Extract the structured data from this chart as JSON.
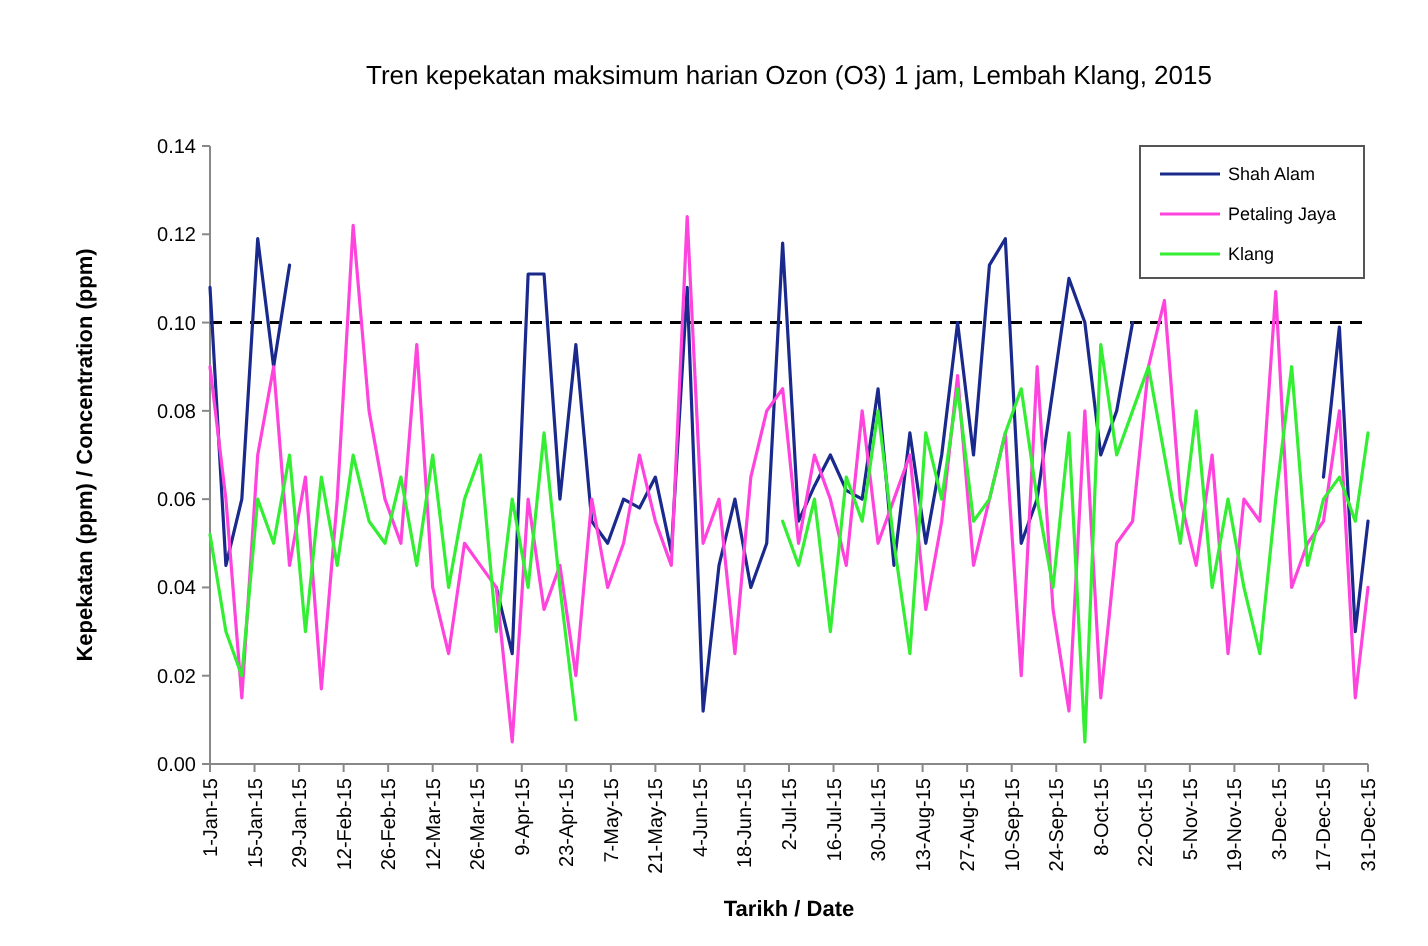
{
  "chart_data": {
    "type": "line",
    "title": "Tren kepekatan maksimum  harian Ozon (O3) 1 jam, Lembah Klang, 2015",
    "xlabel": "Tarikh / Date",
    "ylabel": "Kepekatan (ppm) / Concentration (ppm)",
    "x": [
      "2015-01-01",
      "2015-01-06",
      "2015-01-11",
      "2015-01-16",
      "2015-01-21",
      "2015-01-26",
      "2015-01-31",
      "2015-02-05",
      "2015-02-10",
      "2015-02-15",
      "2015-02-20",
      "2015-02-25",
      "2015-03-02",
      "2015-03-07",
      "2015-03-12",
      "2015-03-17",
      "2015-03-22",
      "2015-03-27",
      "2015-04-01",
      "2015-04-06",
      "2015-04-11",
      "2015-04-16",
      "2015-04-21",
      "2015-04-26",
      "2015-05-01",
      "2015-05-06",
      "2015-05-11",
      "2015-05-16",
      "2015-05-21",
      "2015-05-26",
      "2015-05-31",
      "2015-06-05",
      "2015-06-10",
      "2015-06-15",
      "2015-06-20",
      "2015-06-25",
      "2015-06-30",
      "2015-07-05",
      "2015-07-10",
      "2015-07-15",
      "2015-07-20",
      "2015-07-25",
      "2015-07-30",
      "2015-08-04",
      "2015-08-09",
      "2015-08-14",
      "2015-08-19",
      "2015-08-24",
      "2015-08-29",
      "2015-09-03",
      "2015-09-08",
      "2015-09-13",
      "2015-09-18",
      "2015-09-23",
      "2015-09-28",
      "2015-10-03",
      "2015-10-08",
      "2015-10-13",
      "2015-10-18",
      "2015-10-23",
      "2015-10-28",
      "2015-11-02",
      "2015-11-07",
      "2015-11-12",
      "2015-11-17",
      "2015-11-22",
      "2015-11-27",
      "2015-12-02",
      "2015-12-07",
      "2015-12-12",
      "2015-12-17",
      "2015-12-22",
      "2015-12-27",
      "2015-12-31"
    ],
    "series": [
      {
        "name": "Shah Alam",
        "color": "#1a2a8c",
        "values": [
          0.108,
          0.045,
          0.06,
          0.119,
          0.09,
          0.113,
          null,
          null,
          null,
          null,
          null,
          null,
          null,
          null,
          null,
          null,
          null,
          null,
          0.04,
          0.025,
          0.111,
          0.111,
          0.06,
          0.095,
          0.055,
          0.05,
          0.06,
          0.058,
          0.065,
          0.048,
          0.108,
          0.012,
          0.045,
          0.06,
          0.04,
          0.05,
          0.118,
          0.055,
          0.063,
          0.07,
          0.062,
          0.06,
          0.085,
          0.045,
          0.075,
          0.05,
          0.07,
          0.1,
          0.07,
          0.113,
          0.119,
          0.05,
          0.06,
          0.085,
          0.11,
          0.1,
          0.07,
          0.08,
          0.1,
          null,
          null,
          null,
          null,
          null,
          null,
          null,
          null,
          null,
          null,
          null,
          0.065,
          0.099,
          0.03,
          0.055
        ]
      },
      {
        "name": "Petaling Jaya",
        "color": "#ff44dd",
        "values": [
          0.09,
          0.06,
          0.015,
          0.07,
          0.09,
          0.045,
          0.065,
          0.017,
          0.06,
          0.122,
          0.08,
          0.06,
          0.05,
          0.095,
          0.04,
          0.025,
          0.05,
          0.045,
          0.04,
          0.005,
          0.06,
          0.035,
          0.045,
          0.02,
          0.06,
          0.04,
          0.05,
          0.07,
          0.055,
          0.045,
          0.124,
          0.05,
          0.06,
          0.025,
          0.065,
          0.08,
          0.085,
          0.05,
          0.07,
          0.06,
          0.045,
          0.08,
          0.05,
          0.06,
          0.07,
          0.035,
          0.055,
          0.088,
          0.045,
          0.06,
          0.075,
          0.02,
          0.09,
          0.035,
          0.012,
          0.08,
          0.015,
          0.05,
          0.055,
          0.09,
          0.105,
          0.06,
          0.045,
          0.07,
          0.025,
          0.06,
          0.055,
          0.107,
          0.04,
          0.05,
          0.055,
          0.08,
          0.015,
          0.04
        ]
      },
      {
        "name": "Klang",
        "color": "#33ee33",
        "values": [
          0.052,
          0.03,
          0.02,
          0.06,
          0.05,
          0.07,
          0.03,
          0.065,
          0.045,
          0.07,
          0.055,
          0.05,
          0.065,
          0.045,
          0.07,
          0.04,
          0.06,
          0.07,
          0.03,
          0.06,
          0.04,
          0.075,
          0.04,
          0.01,
          null,
          null,
          null,
          null,
          null,
          null,
          null,
          null,
          null,
          null,
          null,
          null,
          0.055,
          0.045,
          0.06,
          0.03,
          0.065,
          0.055,
          0.08,
          0.05,
          0.025,
          0.075,
          0.06,
          0.085,
          0.055,
          0.06,
          0.075,
          0.085,
          0.06,
          0.04,
          0.075,
          0.005,
          0.095,
          0.07,
          0.08,
          0.09,
          0.07,
          0.05,
          0.08,
          0.04,
          0.06,
          0.04,
          0.025,
          0.06,
          0.09,
          0.045,
          0.06,
          0.065,
          0.055,
          0.075
        ]
      }
    ],
    "xlim": [
      "2015-01-01",
      "2015-12-31"
    ],
    "xticks": [
      {
        "value": "2015-01-01",
        "label": "1-Jan-15"
      },
      {
        "value": "2015-01-15",
        "label": "15-Jan-15"
      },
      {
        "value": "2015-01-29",
        "label": "29-Jan-15"
      },
      {
        "value": "2015-02-12",
        "label": "12-Feb-15"
      },
      {
        "value": "2015-02-26",
        "label": "26-Feb-15"
      },
      {
        "value": "2015-03-12",
        "label": "12-Mar-15"
      },
      {
        "value": "2015-03-26",
        "label": "26-Mar-15"
      },
      {
        "value": "2015-04-09",
        "label": "9-Apr-15"
      },
      {
        "value": "2015-04-23",
        "label": "23-Apr-15"
      },
      {
        "value": "2015-05-07",
        "label": "7-May-15"
      },
      {
        "value": "2015-05-21",
        "label": "21-May-15"
      },
      {
        "value": "2015-06-04",
        "label": "4-Jun-15"
      },
      {
        "value": "2015-06-18",
        "label": "18-Jun-15"
      },
      {
        "value": "2015-07-02",
        "label": "2-Jul-15"
      },
      {
        "value": "2015-07-16",
        "label": "16-Jul-15"
      },
      {
        "value": "2015-07-30",
        "label": "30-Jul-15"
      },
      {
        "value": "2015-08-13",
        "label": "13-Aug-15"
      },
      {
        "value": "2015-08-27",
        "label": "27-Aug-15"
      },
      {
        "value": "2015-09-10",
        "label": "10-Sep-15"
      },
      {
        "value": "2015-09-24",
        "label": "24-Sep-15"
      },
      {
        "value": "2015-10-08",
        "label": "8-Oct-15"
      },
      {
        "value": "2015-10-22",
        "label": "22-Oct-15"
      },
      {
        "value": "2015-11-05",
        "label": "5-Nov-15"
      },
      {
        "value": "2015-11-19",
        "label": "19-Nov-15"
      },
      {
        "value": "2015-12-03",
        "label": "3-Dec-15"
      },
      {
        "value": "2015-12-17",
        "label": "17-Dec-15"
      },
      {
        "value": "2015-12-31",
        "label": "31-Dec-15"
      }
    ],
    "ylim": [
      0,
      0.14
    ],
    "yticks": [
      {
        "value": 0,
        "label": "0.00"
      },
      {
        "value": 0.02,
        "label": "0.02"
      },
      {
        "value": 0.04,
        "label": "0.04"
      },
      {
        "value": 0.06,
        "label": "0.06"
      },
      {
        "value": 0.08,
        "label": "0.08"
      },
      {
        "value": 0.1,
        "label": "0.10"
      },
      {
        "value": 0.12,
        "label": "0.12"
      },
      {
        "value": 0.14,
        "label": "0.14"
      }
    ],
    "ref_lines": [
      {
        "axis": "y",
        "value": 0.1,
        "color": "#000000",
        "line_style": "dashed"
      }
    ],
    "legend": "top right",
    "grid": false,
    "marker": "none",
    "line_style": "solid"
  }
}
